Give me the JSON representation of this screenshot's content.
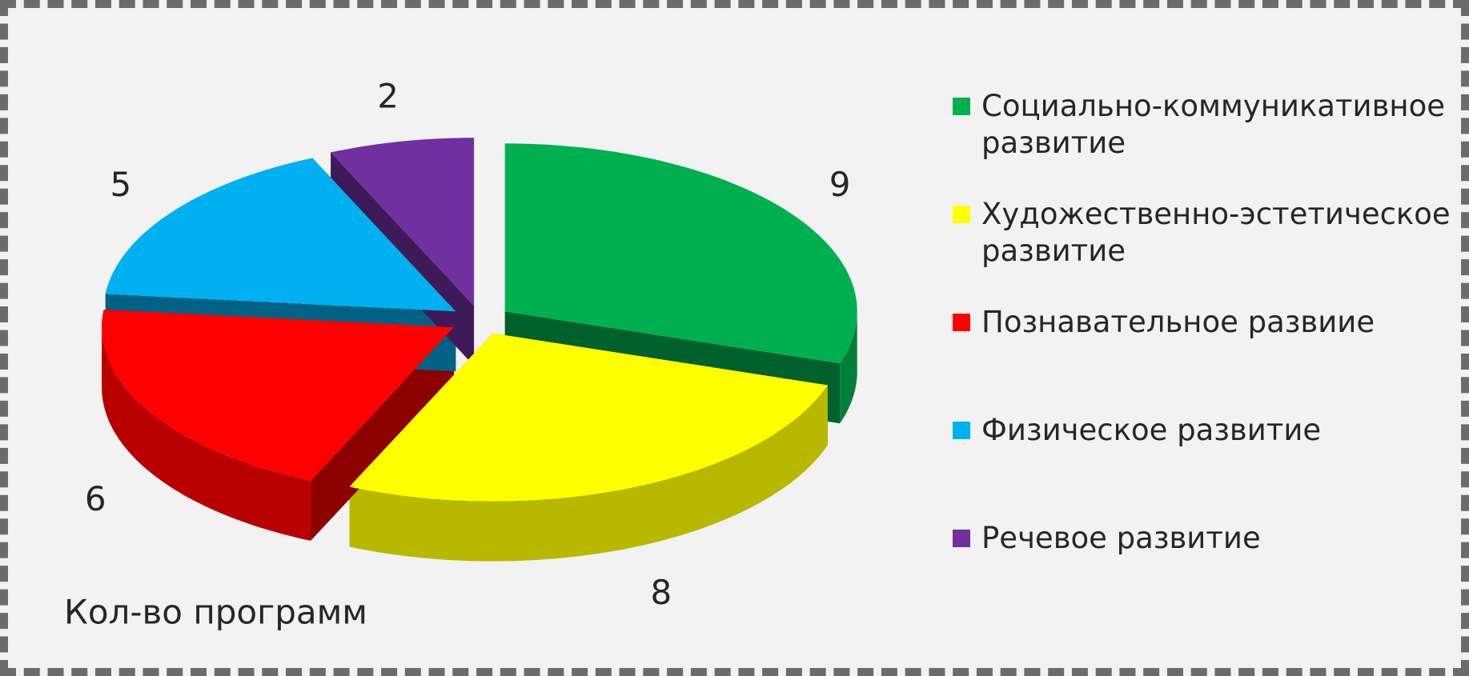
{
  "chart_data": {
    "type": "pie3d",
    "title": "Кол-во программ",
    "categories": [
      "Социально-коммуникативное развитие",
      "Художественно-эстетическое развитие",
      "Познавательное развиие",
      "Физическое развитие",
      "Речевое развитие"
    ],
    "values": [
      9,
      8,
      6,
      5,
      2
    ],
    "colors": [
      "#00b050",
      "#ffff00",
      "#ff0000",
      "#00b0f0",
      "#7030a0"
    ],
    "legend": "right"
  }
}
